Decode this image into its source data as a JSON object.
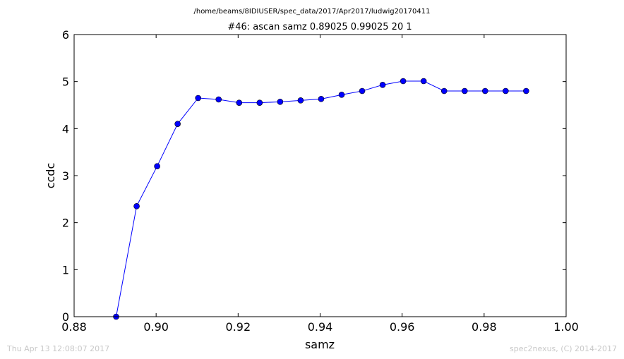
{
  "chart_data": {
    "type": "line",
    "suptitle": "/home/beams/8IDIUSER/spec_data/2017/Apr2017/ludwig20170411",
    "title": "#46: ascan  samz 0.89025 0.99025  20 1",
    "xlabel": "samz",
    "ylabel": "ccdc",
    "xlim": [
      0.88,
      1.0
    ],
    "ylim": [
      0,
      6
    ],
    "xticks": [
      0.88,
      0.9,
      0.92,
      0.94,
      0.96,
      0.98,
      1.0
    ],
    "xtick_labels": [
      "0.88",
      "0.90",
      "0.92",
      "0.94",
      "0.96",
      "0.98",
      "1.00"
    ],
    "yticks": [
      0,
      1,
      2,
      3,
      4,
      5,
      6
    ],
    "ytick_labels": [
      "0",
      "1",
      "2",
      "3",
      "4",
      "5",
      "6"
    ],
    "grid": false,
    "series": [
      {
        "color": "#0000ff",
        "marker": "circle",
        "x": [
          0.89025,
          0.89525,
          0.90025,
          0.90525,
          0.91025,
          0.91525,
          0.92025,
          0.92525,
          0.93025,
          0.93525,
          0.94025,
          0.94525,
          0.95025,
          0.95525,
          0.96025,
          0.96525,
          0.97025,
          0.97525,
          0.98025,
          0.98525,
          0.99025
        ],
        "y": [
          0.0,
          2.35,
          3.2,
          4.1,
          4.65,
          4.62,
          4.55,
          4.55,
          4.57,
          4.6,
          4.63,
          4.72,
          4.8,
          4.93,
          5.01,
          5.01,
          4.8,
          4.8,
          4.8,
          4.8,
          4.8
        ]
      }
    ]
  },
  "footer": {
    "timestamp": "Thu Apr 13 12:08:07 2017",
    "credit": "spec2nexus, (C) 2014-2017"
  }
}
